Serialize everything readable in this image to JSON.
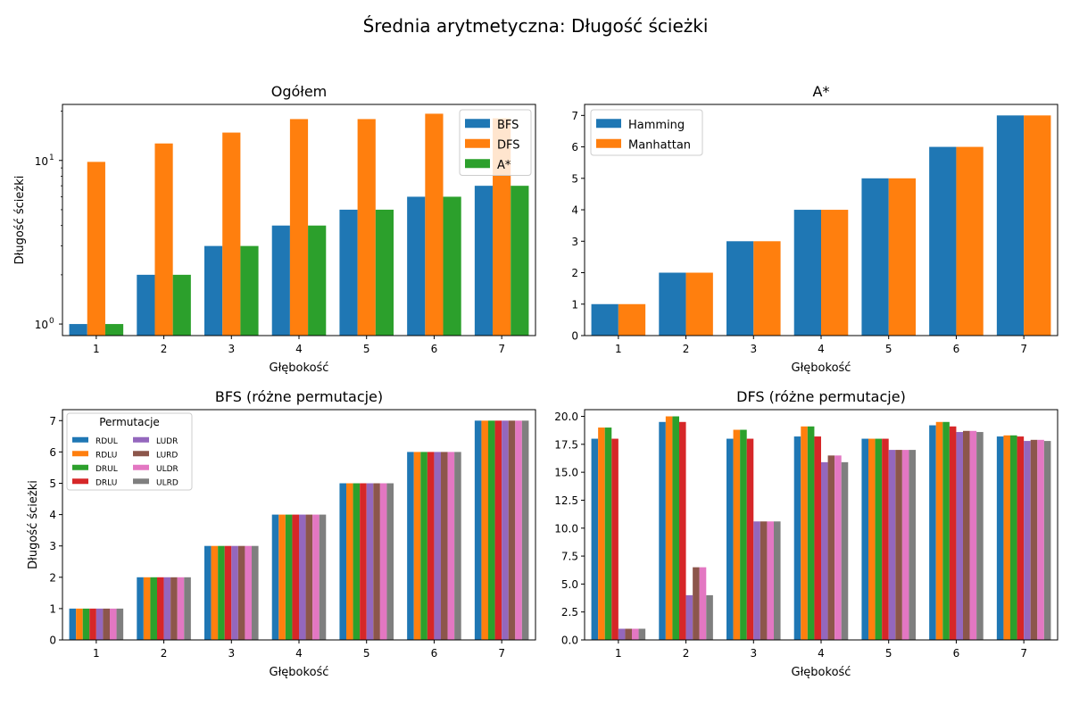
{
  "title": "Średnia arytmetyczna: Długość ścieżki",
  "colors": {
    "blue": "#1f77b4",
    "orange": "#ff7f0e",
    "green": "#2ca02c",
    "red": "#d62728",
    "purple": "#9467bd",
    "brown": "#8c564b",
    "pink": "#e377c2",
    "gray": "#7f7f7f"
  },
  "chart_data": [
    {
      "type": "bar",
      "title": "Ogółem",
      "xlabel": "Głębokość",
      "ylabel": "Długość ścieżki",
      "yscale": "log",
      "ylim": [
        0.85,
        22
      ],
      "ytick_labels": [
        {
          "value": 1,
          "base": "10",
          "exp": "0"
        },
        {
          "value": 10,
          "base": "10",
          "exp": "1"
        }
      ],
      "categories": [
        "1",
        "2",
        "3",
        "4",
        "5",
        "6",
        "7"
      ],
      "series": [
        {
          "name": "BFS",
          "color": "#1f77b4",
          "values": [
            1,
            2,
            3,
            4,
            5,
            6,
            7
          ]
        },
        {
          "name": "DFS",
          "color": "#ff7f0e",
          "values": [
            9.8,
            12.7,
            14.8,
            17.9,
            17.9,
            19.3,
            18.1
          ]
        },
        {
          "name": "A*",
          "color": "#2ca02c",
          "values": [
            1,
            2,
            3,
            4,
            5,
            6,
            7
          ]
        }
      ],
      "legend": {
        "placement": "top-right",
        "columns": 1
      }
    },
    {
      "type": "bar",
      "title": "A*",
      "xlabel": "Głębokość",
      "ylabel": "",
      "yscale": "linear",
      "ylim": [
        0,
        7.35
      ],
      "yticks": [
        0,
        1,
        2,
        3,
        4,
        5,
        6,
        7
      ],
      "ytick_labels": [
        "0",
        "1",
        "2",
        "3",
        "4",
        "5",
        "6",
        "7"
      ],
      "categories": [
        "1",
        "2",
        "3",
        "4",
        "5",
        "6",
        "7"
      ],
      "series": [
        {
          "name": "Hamming",
          "color": "#1f77b4",
          "values": [
            1,
            2,
            3,
            4,
            5,
            6,
            7
          ]
        },
        {
          "name": "Manhattan",
          "color": "#ff7f0e",
          "values": [
            1,
            2,
            3,
            4,
            5,
            6,
            7
          ]
        }
      ],
      "legend": {
        "placement": "top-left",
        "columns": 1
      }
    },
    {
      "type": "bar",
      "title": "BFS (różne permutacje)",
      "xlabel": "Głębokość",
      "ylabel": "Długość ścieżki",
      "yscale": "linear",
      "ylim": [
        0,
        7.35
      ],
      "yticks": [
        0,
        1,
        2,
        3,
        4,
        5,
        6,
        7
      ],
      "ytick_labels": [
        "0",
        "1",
        "2",
        "3",
        "4",
        "5",
        "6",
        "7"
      ],
      "categories": [
        "1",
        "2",
        "3",
        "4",
        "5",
        "6",
        "7"
      ],
      "series": [
        {
          "name": "RDUL",
          "color": "#1f77b4",
          "values": [
            1,
            2,
            3,
            4,
            5,
            6,
            7
          ]
        },
        {
          "name": "RDLU",
          "color": "#ff7f0e",
          "values": [
            1,
            2,
            3,
            4,
            5,
            6,
            7
          ]
        },
        {
          "name": "DRUL",
          "color": "#2ca02c",
          "values": [
            1,
            2,
            3,
            4,
            5,
            6,
            7
          ]
        },
        {
          "name": "DRLU",
          "color": "#d62728",
          "values": [
            1,
            2,
            3,
            4,
            5,
            6,
            7
          ]
        },
        {
          "name": "LUDR",
          "color": "#9467bd",
          "values": [
            1,
            2,
            3,
            4,
            5,
            6,
            7
          ]
        },
        {
          "name": "LURD",
          "color": "#8c564b",
          "values": [
            1,
            2,
            3,
            4,
            5,
            6,
            7
          ]
        },
        {
          "name": "ULDR",
          "color": "#e377c2",
          "values": [
            1,
            2,
            3,
            4,
            5,
            6,
            7
          ]
        },
        {
          "name": "ULRD",
          "color": "#7f7f7f",
          "values": [
            1,
            2,
            3,
            4,
            5,
            6,
            7
          ]
        }
      ],
      "legend": {
        "placement": "top-left",
        "columns": 2,
        "title": "Permutacje"
      }
    },
    {
      "type": "bar",
      "title": "DFS (różne permutacje)",
      "xlabel": "Głębokość",
      "ylabel": "",
      "yscale": "linear",
      "ylim": [
        0,
        20.6
      ],
      "yticks": [
        0,
        2.5,
        5,
        7.5,
        10,
        12.5,
        15,
        17.5,
        20
      ],
      "ytick_labels": [
        "0.0",
        "2.5",
        "5.0",
        "7.5",
        "10.0",
        "12.5",
        "15.0",
        "17.5",
        "20.0"
      ],
      "categories": [
        "1",
        "2",
        "3",
        "4",
        "5",
        "6",
        "7"
      ],
      "series": [
        {
          "name": "RDUL",
          "color": "#1f77b4",
          "values": [
            18,
            19.5,
            18,
            18.2,
            18,
            19.2,
            18.2
          ]
        },
        {
          "name": "RDLU",
          "color": "#ff7f0e",
          "values": [
            19,
            20,
            18.8,
            19.1,
            18,
            19.5,
            18.3
          ]
        },
        {
          "name": "DRUL",
          "color": "#2ca02c",
          "values": [
            19,
            20,
            18.8,
            19.1,
            18,
            19.5,
            18.3
          ]
        },
        {
          "name": "DRLU",
          "color": "#d62728",
          "values": [
            18,
            19.5,
            18,
            18.2,
            18,
            19.1,
            18.2
          ]
        },
        {
          "name": "LUDR",
          "color": "#9467bd",
          "values": [
            1,
            4,
            10.6,
            15.9,
            17,
            18.6,
            17.8
          ]
        },
        {
          "name": "LURD",
          "color": "#8c564b",
          "values": [
            1,
            6.5,
            10.6,
            16.5,
            17,
            18.7,
            17.9
          ]
        },
        {
          "name": "ULDR",
          "color": "#e377c2",
          "values": [
            1,
            6.5,
            10.6,
            16.5,
            17,
            18.7,
            17.9
          ]
        },
        {
          "name": "ULRD",
          "color": "#7f7f7f",
          "values": [
            1,
            4,
            10.6,
            15.9,
            17,
            18.6,
            17.8
          ]
        }
      ],
      "legend": null
    }
  ]
}
